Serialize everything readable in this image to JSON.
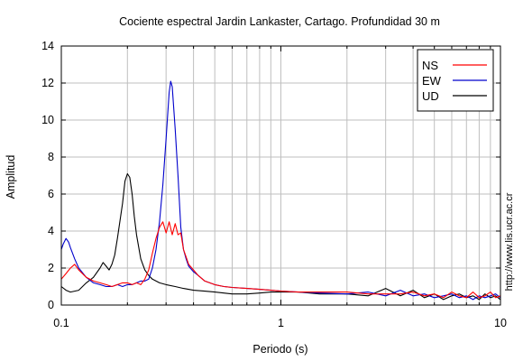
{
  "chart_data": {
    "type": "line",
    "title": "Cociente espectral Jardin Lankaster, Cartago. Profundidad 30 m",
    "xlabel": "Periodo (s)",
    "ylabel": "Amplitud",
    "xscale": "log",
    "xlim": [
      0.1,
      10
    ],
    "ylim": [
      0,
      14
    ],
    "xticks": [
      {
        "value": 0.1,
        "label": "0.1"
      },
      {
        "value": 1,
        "label": "1"
      },
      {
        "value": 10,
        "label": "10"
      }
    ],
    "yticks": [
      {
        "value": 0,
        "label": "0"
      },
      {
        "value": 2,
        "label": "2"
      },
      {
        "value": 4,
        "label": "4"
      },
      {
        "value": 6,
        "label": "6"
      },
      {
        "value": 8,
        "label": "8"
      },
      {
        "value": 10,
        "label": "10"
      },
      {
        "value": 12,
        "label": "12"
      },
      {
        "value": 14,
        "label": "14"
      }
    ],
    "grid": true,
    "legend_position": "top-right",
    "side_text": "http://www.lis.ucr.ac.cr",
    "series": [
      {
        "name": "NS",
        "color": "#ff0000",
        "x": [
          0.1,
          0.105,
          0.11,
          0.115,
          0.12,
          0.13,
          0.14,
          0.15,
          0.16,
          0.17,
          0.18,
          0.19,
          0.2,
          0.21,
          0.22,
          0.23,
          0.24,
          0.25,
          0.26,
          0.27,
          0.28,
          0.29,
          0.3,
          0.31,
          0.32,
          0.33,
          0.34,
          0.35,
          0.36,
          0.37,
          0.38,
          0.4,
          0.42,
          0.45,
          0.5,
          0.55,
          0.6,
          0.7,
          0.8,
          0.9,
          1.0,
          1.2,
          1.5,
          2.0,
          2.5,
          3.0,
          3.5,
          4.0,
          4.5,
          5.0,
          5.5,
          6.0,
          6.5,
          7.0,
          7.5,
          8.0,
          8.5,
          9.0,
          9.5,
          10.0
        ],
        "y": [
          1.4,
          1.7,
          2.0,
          2.2,
          1.9,
          1.5,
          1.3,
          1.2,
          1.1,
          1.0,
          1.1,
          1.2,
          1.2,
          1.1,
          1.2,
          1.1,
          1.4,
          1.9,
          2.8,
          3.6,
          4.2,
          4.5,
          3.9,
          4.5,
          3.8,
          4.4,
          3.8,
          3.9,
          3.0,
          2.6,
          2.2,
          1.9,
          1.6,
          1.3,
          1.1,
          1.0,
          0.95,
          0.9,
          0.85,
          0.8,
          0.75,
          0.7,
          0.7,
          0.7,
          0.6,
          0.6,
          0.6,
          0.7,
          0.5,
          0.6,
          0.4,
          0.7,
          0.5,
          0.4,
          0.7,
          0.4,
          0.5,
          0.7,
          0.4,
          0.5
        ]
      },
      {
        "name": "EW",
        "color": "#0000cc",
        "x": [
          0.1,
          0.102,
          0.105,
          0.108,
          0.11,
          0.115,
          0.12,
          0.13,
          0.14,
          0.15,
          0.16,
          0.17,
          0.18,
          0.19,
          0.2,
          0.21,
          0.22,
          0.23,
          0.24,
          0.25,
          0.26,
          0.27,
          0.28,
          0.29,
          0.3,
          0.31,
          0.315,
          0.32,
          0.33,
          0.34,
          0.35,
          0.36,
          0.37,
          0.38,
          0.4,
          0.42,
          0.45,
          0.5,
          0.55,
          0.6,
          0.7,
          0.8,
          0.9,
          1.0,
          1.2,
          1.5,
          2.0,
          2.5,
          3.0,
          3.5,
          4.0,
          4.5,
          5.0,
          5.5,
          6.0,
          6.5,
          7.0,
          7.5,
          8.0,
          8.5,
          9.0,
          9.5,
          10.0
        ],
        "y": [
          3.0,
          3.3,
          3.6,
          3.4,
          3.1,
          2.5,
          2.0,
          1.5,
          1.2,
          1.1,
          1.0,
          1.0,
          1.1,
          1.0,
          1.1,
          1.1,
          1.2,
          1.3,
          1.3,
          1.4,
          2.0,
          3.0,
          4.5,
          6.5,
          9.0,
          11.5,
          12.1,
          11.8,
          9.5,
          7.0,
          4.2,
          3.0,
          2.5,
          2.1,
          1.8,
          1.6,
          1.3,
          1.1,
          1.0,
          0.95,
          0.9,
          0.85,
          0.8,
          0.75,
          0.7,
          0.65,
          0.6,
          0.7,
          0.5,
          0.8,
          0.5,
          0.6,
          0.4,
          0.5,
          0.6,
          0.4,
          0.5,
          0.3,
          0.5,
          0.4,
          0.5,
          0.6,
          0.4
        ]
      },
      {
        "name": "UD",
        "color": "#000000",
        "x": [
          0.1,
          0.105,
          0.11,
          0.12,
          0.13,
          0.14,
          0.15,
          0.155,
          0.16,
          0.165,
          0.17,
          0.175,
          0.18,
          0.19,
          0.195,
          0.2,
          0.205,
          0.21,
          0.215,
          0.22,
          0.23,
          0.24,
          0.25,
          0.26,
          0.28,
          0.3,
          0.33,
          0.36,
          0.4,
          0.45,
          0.5,
          0.55,
          0.6,
          0.7,
          0.8,
          0.9,
          1.0,
          1.2,
          1.5,
          2.0,
          2.5,
          3.0,
          3.5,
          4.0,
          4.5,
          5.0,
          5.5,
          6.0,
          6.5,
          7.0,
          7.5,
          8.0,
          8.5,
          9.0,
          9.5,
          10.0
        ],
        "y": [
          1.0,
          0.8,
          0.7,
          0.8,
          1.2,
          1.5,
          2.0,
          2.3,
          2.1,
          1.9,
          2.2,
          2.7,
          3.6,
          5.5,
          6.7,
          7.1,
          6.9,
          6.0,
          4.8,
          3.8,
          2.5,
          1.9,
          1.6,
          1.4,
          1.2,
          1.1,
          1.0,
          0.9,
          0.8,
          0.75,
          0.7,
          0.65,
          0.6,
          0.6,
          0.65,
          0.7,
          0.7,
          0.7,
          0.6,
          0.6,
          0.5,
          0.9,
          0.5,
          0.8,
          0.4,
          0.6,
          0.3,
          0.5,
          0.6,
          0.4,
          0.5,
          0.3,
          0.6,
          0.4,
          0.5,
          0.3
        ]
      }
    ]
  }
}
